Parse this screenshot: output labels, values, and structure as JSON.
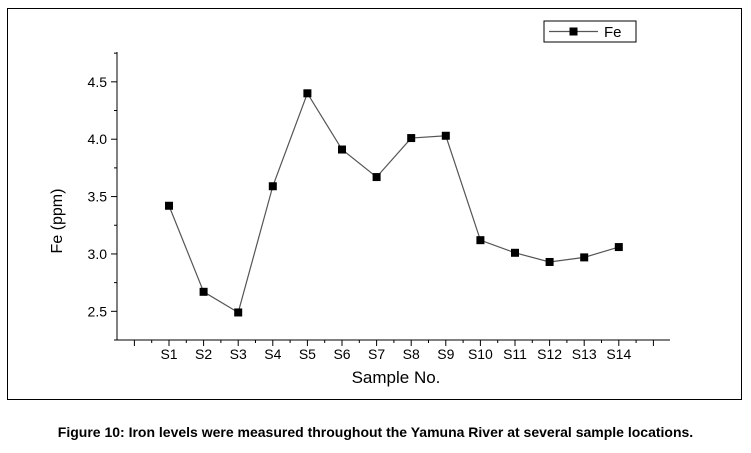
{
  "chart_data": {
    "type": "line",
    "categories": [
      "S1",
      "S2",
      "S3",
      "S4",
      "S5",
      "S6",
      "S7",
      "S8",
      "S9",
      "S10",
      "S11",
      "S12",
      "S13",
      "S14"
    ],
    "series": [
      {
        "name": "Fe",
        "values": [
          3.42,
          2.67,
          2.49,
          3.59,
          4.4,
          3.91,
          3.67,
          4.01,
          4.03,
          3.12,
          3.01,
          2.93,
          2.97,
          3.06
        ]
      }
    ],
    "xlabel": "Sample No.",
    "ylabel": "Fe (ppm)",
    "ylim": [
      2.25,
      4.76
    ],
    "yticks": [
      2.5,
      3.0,
      3.5,
      4.0,
      4.5
    ],
    "ytick_labels": [
      "2.5",
      "3.0",
      "3.5",
      "4.0",
      "4.5"
    ],
    "grid": false,
    "legend_position": "top-right",
    "line_color": "#555555",
    "marker_color": "#000000",
    "marker": "square"
  },
  "caption": "Figure 10: Iron levels were measured throughout the Yamuna River at several sample locations."
}
